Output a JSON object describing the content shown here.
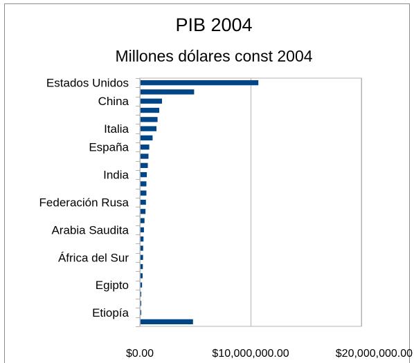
{
  "chart_data": {
    "type": "bar",
    "orientation": "horizontal",
    "title": "PIB 2004",
    "subtitle": "Millones dólares const 2004",
    "categories": [
      "Estados Unidos",
      "",
      "China",
      "",
      "",
      "Italia",
      "",
      "España",
      "",
      "",
      "India",
      "",
      "",
      "Federación Rusa",
      "",
      "",
      "Arabia Saudita",
      "",
      "",
      "África del Sur",
      "",
      "",
      "Egipto",
      "",
      "",
      "Etiopía",
      ""
    ],
    "values": [
      10700000,
      4900000,
      2000000,
      1750000,
      1600000,
      1500000,
      1150000,
      850000,
      780000,
      720000,
      630000,
      590000,
      590000,
      550000,
      510000,
      420000,
      370000,
      330000,
      300000,
      290000,
      270000,
      250000,
      200000,
      110000,
      100000,
      90000,
      4800000
    ],
    "xlim": [
      0,
      20000000
    ],
    "xticks": [
      0,
      10000000,
      20000000
    ],
    "xtick_labels": [
      "$0.00",
      "$10,000,000.00",
      "$20,000,000.00"
    ],
    "grid": true,
    "bar_color": "#004586"
  }
}
